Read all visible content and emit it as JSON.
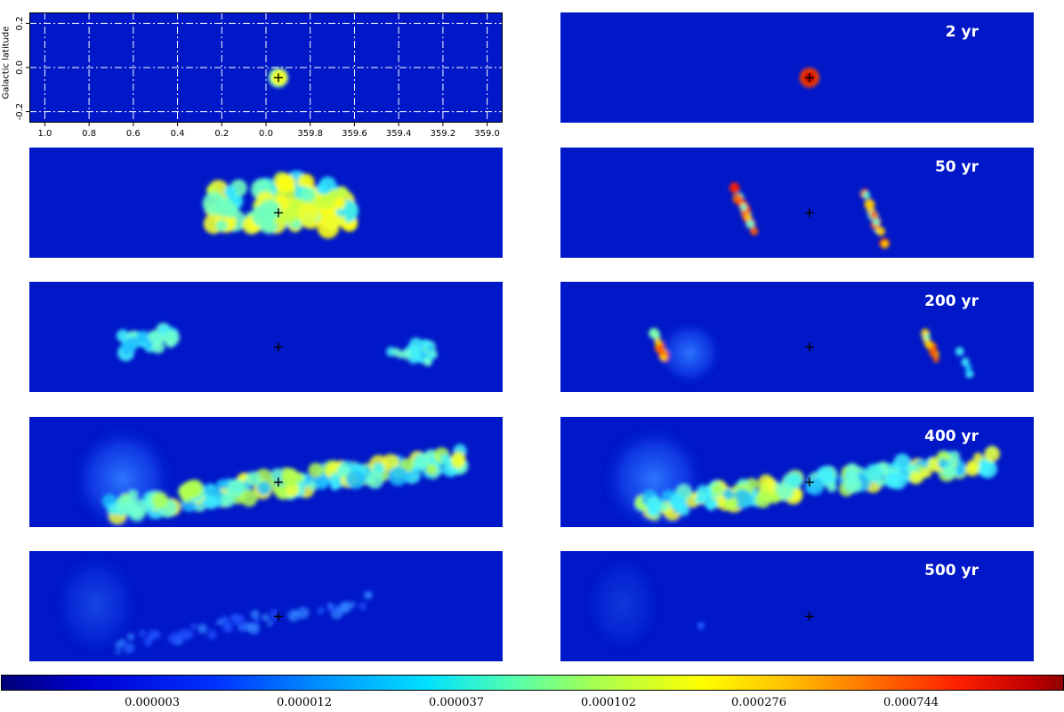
{
  "chart_data": {
    "type": "heatmap",
    "ylabel": "Galactic latitude",
    "x_ticks": [
      "1.0",
      "0.8",
      "0.6",
      "0.4",
      "0.2",
      "0.0",
      "359.8",
      "359.6",
      "359.4",
      "359.2",
      "359.0"
    ],
    "x_tick_values": [
      1.0,
      0.8,
      0.6,
      0.4,
      0.2,
      0.0,
      -0.2,
      -0.4,
      -0.6,
      -0.8,
      -1.0
    ],
    "y_ticks": [
      "0.2",
      "0.0",
      "-0.2"
    ],
    "y_tick_values": [
      0.2,
      0.0,
      -0.2
    ],
    "xlim": [
      1.07,
      -1.07
    ],
    "ylim": [
      -0.25,
      0.25
    ],
    "grid": true,
    "panel_labels": [
      "",
      "2 yr",
      "",
      "50 yr",
      "",
      "200 yr",
      "",
      "400 yr",
      "",
      "500 yr"
    ],
    "center_marker": {
      "l": -0.056,
      "b": -0.046
    },
    "colorbar_ticks": [
      "0.000003",
      "0.000012",
      "0.000037",
      "0.000102",
      "0.000276",
      "0.000744"
    ],
    "colorbar_tick_values": [
      3e-06,
      1.2e-05,
      3.7e-05,
      0.000102,
      0.000276,
      0.000744
    ],
    "colormap": "jet",
    "colors": {
      "background": "#0018c8",
      "low": "#0048ff",
      "mid": "#00e0ff",
      "high": "#ffff00",
      "peak": "#d00000"
    }
  }
}
